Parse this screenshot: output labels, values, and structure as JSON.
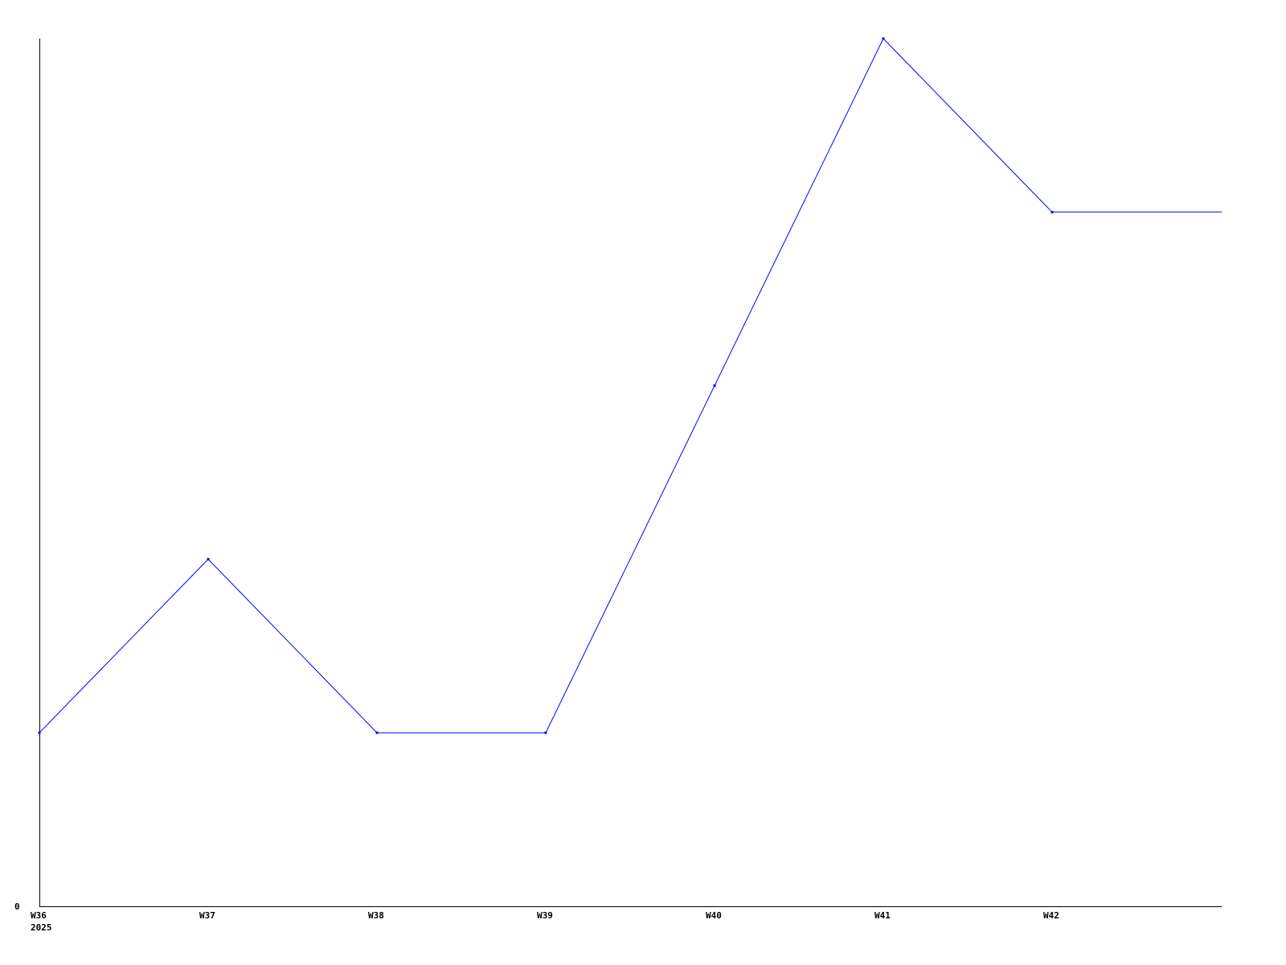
{
  "chart_data": {
    "type": "line",
    "title": "",
    "xlabel": "",
    "ylabel": "",
    "categories": [
      "W36",
      "W37",
      "W38",
      "W39",
      "W40",
      "W41",
      "W42"
    ],
    "x_year_label": "2025",
    "y_tick_labels": [
      "0"
    ],
    "ylim": [
      0,
      5
    ],
    "grid": false,
    "series": [
      {
        "values": [
          1,
          2,
          1,
          1,
          3,
          5,
          4
        ],
        "color": "#0000ff"
      }
    ]
  }
}
